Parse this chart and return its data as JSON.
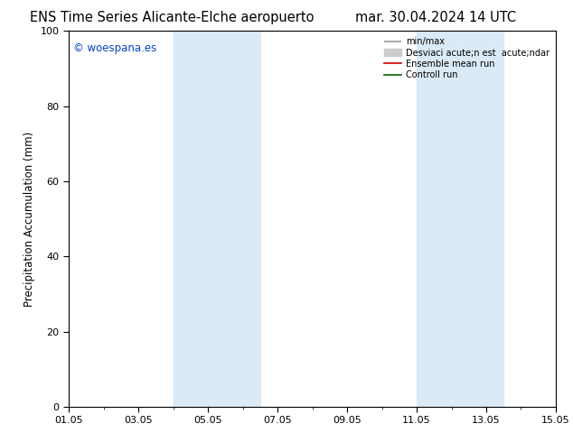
{
  "title_left": "ENS Time Series Alicante-Elche aeropuerto",
  "title_right": "mar. 30.04.2024 14 UTC",
  "ylabel": "Precipitation Accumulation (mm)",
  "watermark": "© woespana.es",
  "ylim": [
    0,
    100
  ],
  "yticks": [
    0,
    20,
    40,
    60,
    80,
    100
  ],
  "xticklabels": [
    "01.05",
    "03.05",
    "05.05",
    "07.05",
    "09.05",
    "11.05",
    "13.05",
    "15.05"
  ],
  "xtick_positions": [
    0,
    2,
    4,
    6,
    8,
    10,
    12,
    14
  ],
  "x_total_days": 14,
  "shaded_regions": [
    {
      "xstart": 3.0,
      "xend": 5.5,
      "color": "#dbeaf7"
    },
    {
      "xstart": 10.0,
      "xend": 12.5,
      "color": "#dbeaf7"
    }
  ],
  "legend_label_minmax": "min/max",
  "legend_label_desv": "Desviaci acute;n est  acute;ndar",
  "legend_label_ensemble": "Ensemble mean run",
  "legend_label_control": "Controll run",
  "legend_color_minmax": "#999999",
  "legend_color_desv": "#cccccc",
  "legend_color_ensemble": "#cc0000",
  "legend_color_control": "#006600",
  "background_color": "#ffffff",
  "plot_bg_color": "#ffffff",
  "title_fontsize": 10.5,
  "axis_fontsize": 8,
  "watermark_color": "#0044cc",
  "watermark_fontsize": 8.5,
  "ylabel_fontsize": 8.5
}
